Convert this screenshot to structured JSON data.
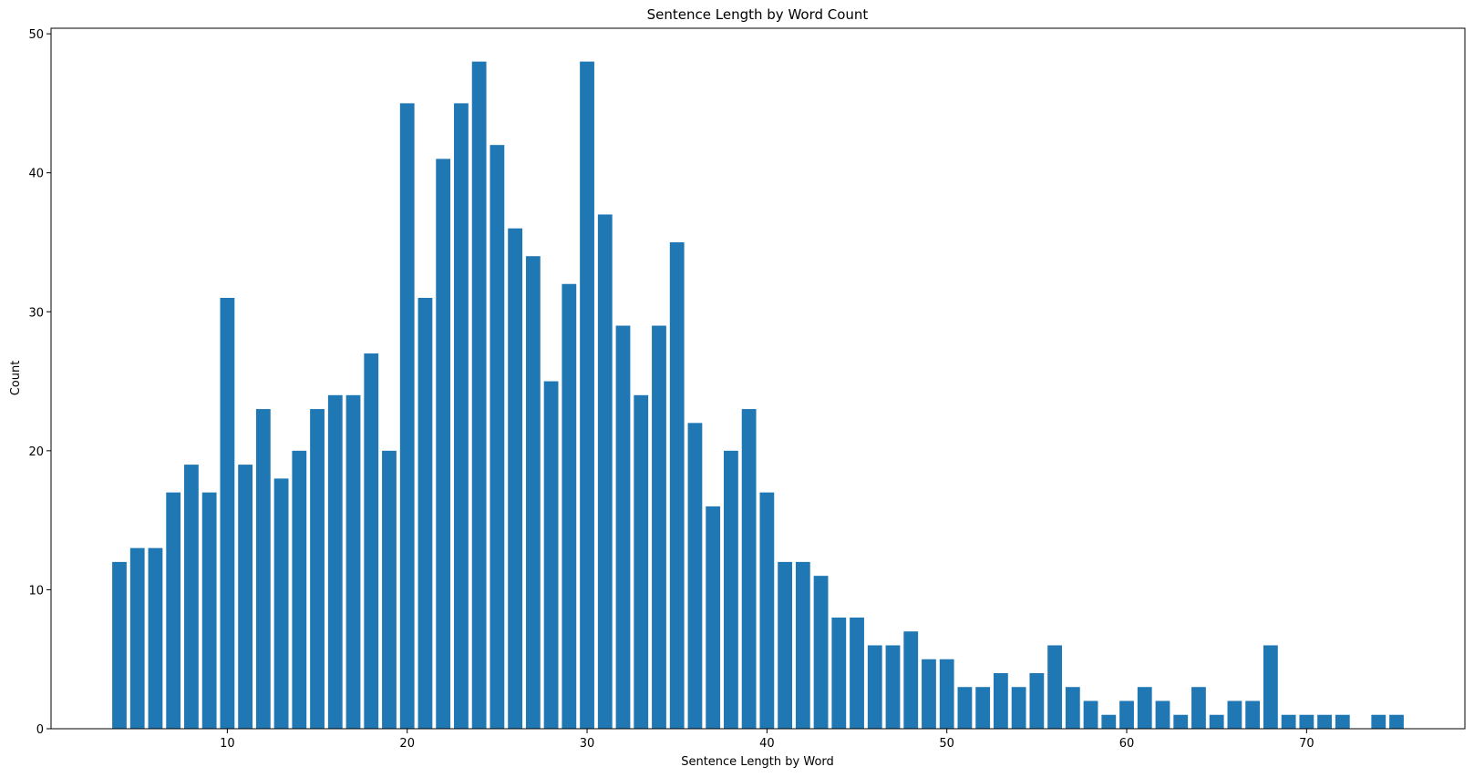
{
  "chart_data": {
    "type": "bar",
    "title": "Sentence Length by Word Count",
    "xlabel": "Sentence Length by Word",
    "ylabel": "Count",
    "x": [
      4,
      5,
      6,
      7,
      8,
      9,
      10,
      11,
      12,
      13,
      14,
      15,
      16,
      17,
      18,
      19,
      20,
      21,
      22,
      23,
      24,
      25,
      26,
      27,
      28,
      29,
      30,
      31,
      32,
      33,
      34,
      35,
      36,
      37,
      38,
      39,
      40,
      41,
      42,
      43,
      44,
      45,
      46,
      47,
      48,
      49,
      50,
      51,
      52,
      53,
      54,
      55,
      56,
      57,
      58,
      59,
      60,
      61,
      62,
      63,
      64,
      65,
      66,
      67,
      68,
      69,
      70,
      71,
      72,
      74,
      75
    ],
    "values": [
      12,
      13,
      13,
      17,
      19,
      17,
      31,
      19,
      23,
      18,
      20,
      23,
      24,
      24,
      27,
      20,
      45,
      31,
      41,
      45,
      48,
      42,
      36,
      34,
      25,
      32,
      48,
      37,
      29,
      24,
      29,
      35,
      22,
      16,
      20,
      23,
      17,
      12,
      12,
      11,
      8,
      8,
      6,
      6,
      7,
      5,
      5,
      3,
      3,
      4,
      3,
      4,
      6,
      3,
      2,
      1,
      2,
      3,
      2,
      1,
      3,
      1,
      2,
      2,
      6,
      1,
      1,
      1,
      1,
      1,
      1
    ],
    "xlim": [
      0.2,
      78.8
    ],
    "ylim": [
      0,
      50.4
    ],
    "xticks": [
      10,
      20,
      30,
      40,
      50,
      60,
      70
    ],
    "yticks": [
      0,
      10,
      20,
      30,
      40,
      50
    ],
    "bar_color": "#1f77b4",
    "grid": false,
    "legend": "none"
  }
}
